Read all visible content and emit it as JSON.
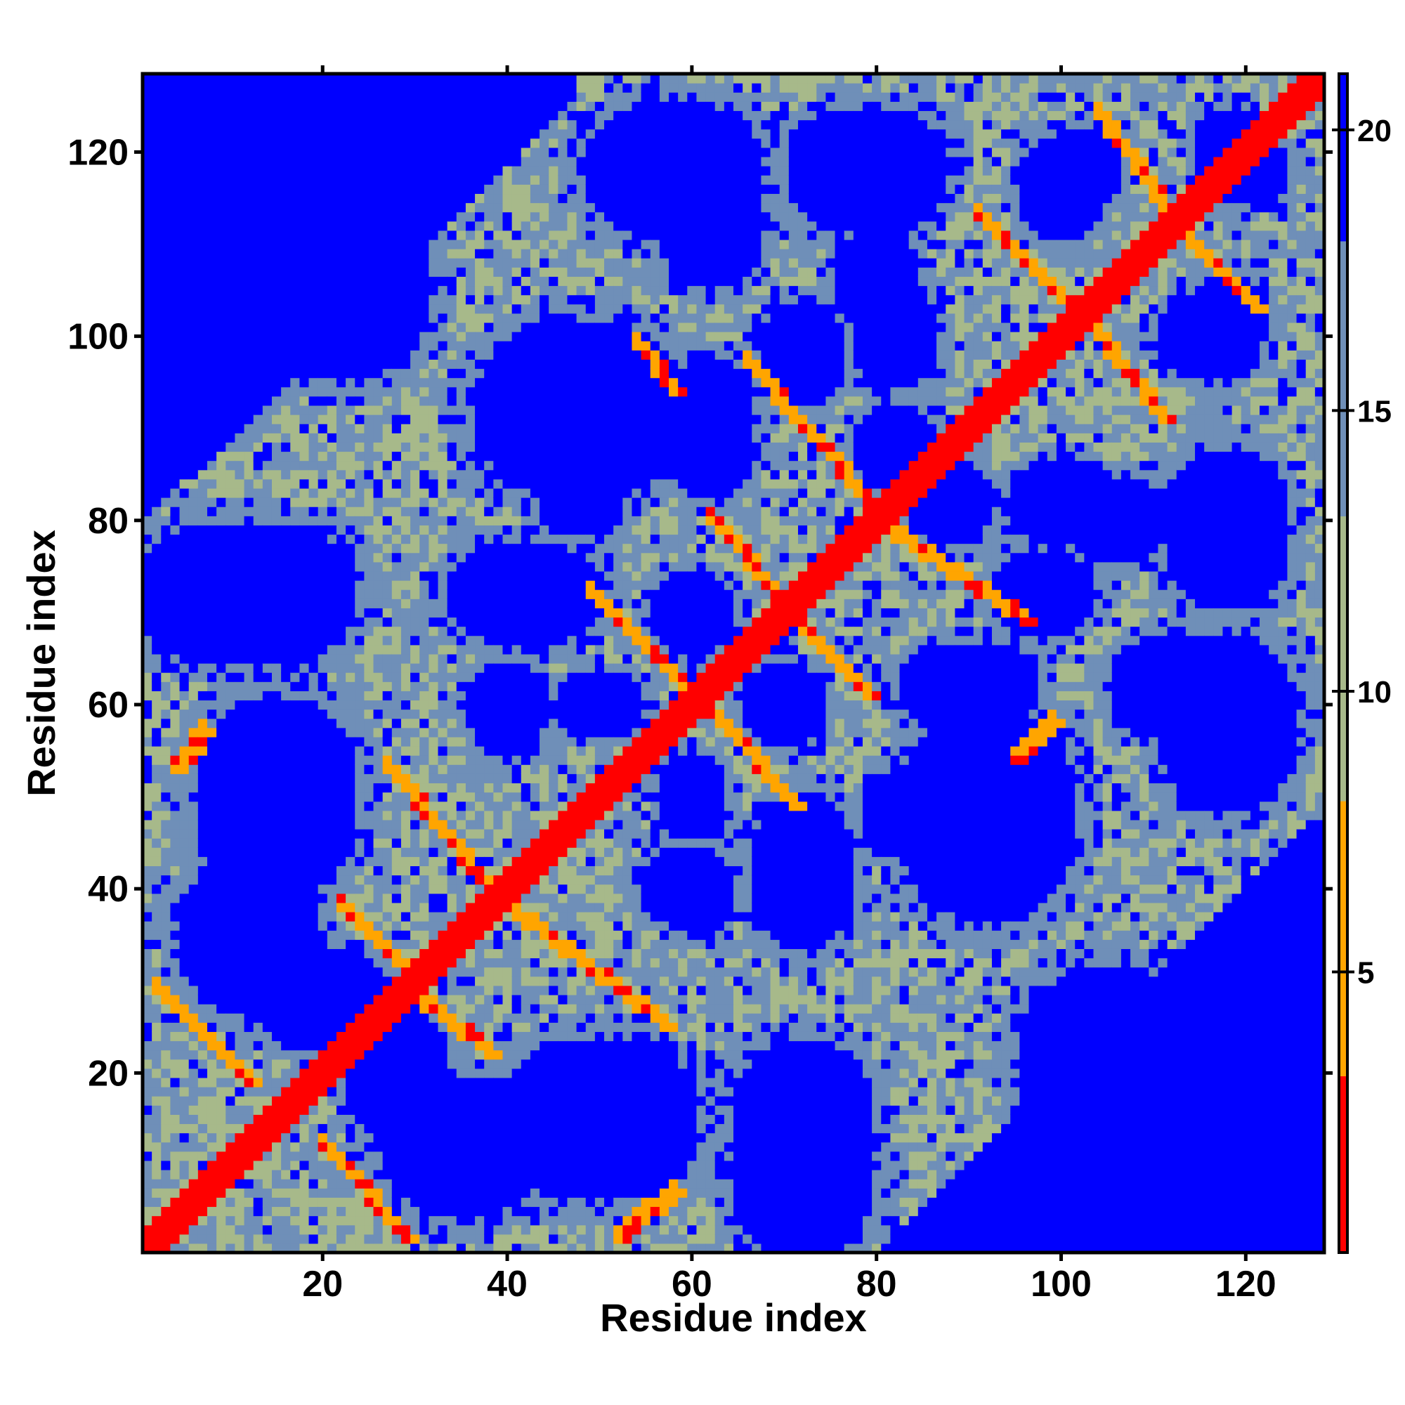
{
  "chart_data": {
    "type": "heatmap",
    "title": "",
    "xlabel": "Residue index",
    "ylabel": "Residue index",
    "n_residues": 128,
    "xlim": [
      1,
      128
    ],
    "ylim": [
      1,
      128
    ],
    "x_ticks": [
      20,
      40,
      60,
      80,
      100,
      120
    ],
    "y_ticks": [
      20,
      40,
      60,
      80,
      100,
      120
    ],
    "colorbar": {
      "ticks": [
        5,
        10,
        15,
        20
      ],
      "range": [
        0,
        21
      ],
      "colors": {
        "contact": "#ff0000",
        "near": "#ffa500",
        "mid": "#a7b98a",
        "far_mid": "#6f8fb8",
        "cutoff": "#0000ff"
      }
    },
    "description_values": {
      "diagonal_distance": 0,
      "cutoff_distance": 21
    },
    "contact_stripes": [
      {
        "x0": 2,
        "y0": 29,
        "x1": 12,
        "y1": 19,
        "v": 6
      },
      {
        "x0": 20,
        "y0": 12,
        "x1": 29,
        "y1": 2,
        "v": 6
      },
      {
        "x0": 22,
        "y0": 38,
        "x1": 30,
        "y1": 30,
        "v": 6
      },
      {
        "x0": 30,
        "y0": 28,
        "x1": 38,
        "y1": 22,
        "v": 6
      },
      {
        "x0": 27,
        "y0": 53,
        "x1": 38,
        "y1": 40,
        "v": 6
      },
      {
        "x0": 40,
        "y0": 38,
        "x1": 57,
        "y1": 25,
        "v": 6
      },
      {
        "x0": 49,
        "y0": 72,
        "x1": 60,
        "y1": 61,
        "v": 6
      },
      {
        "x0": 62,
        "y0": 59,
        "x1": 71,
        "y1": 49,
        "v": 6
      },
      {
        "x0": 62,
        "y0": 80,
        "x1": 69,
        "y1": 72,
        "v": 6
      },
      {
        "x0": 72,
        "y0": 68,
        "x1": 79,
        "y1": 61,
        "v": 6
      },
      {
        "x0": 66,
        "y0": 97,
        "x1": 79,
        "y1": 82,
        "v": 6
      },
      {
        "x0": 81,
        "y0": 79,
        "x1": 96,
        "y1": 69,
        "v": 6
      },
      {
        "x0": 54,
        "y0": 99,
        "x1": 58,
        "y1": 94,
        "v": 6
      },
      {
        "x0": 91,
        "y0": 113,
        "x1": 100,
        "y1": 104,
        "v": 6
      },
      {
        "x0": 103,
        "y0": 101,
        "x1": 111,
        "y1": 91,
        "v": 6
      },
      {
        "x0": 104,
        "y0": 124,
        "x1": 111,
        "y1": 114,
        "v": 6
      },
      {
        "x0": 113,
        "y0": 111,
        "x1": 121,
        "y1": 103,
        "v": 6
      },
      {
        "x0": 4,
        "y0": 53,
        "x1": 7,
        "y1": 57,
        "v": 6
      },
      {
        "x0": 52,
        "y0": 2,
        "x1": 58,
        "y1": 7,
        "v": 6
      },
      {
        "x0": 95,
        "y0": 54,
        "x1": 99,
        "y1": 58,
        "v": 6
      }
    ],
    "cutoff_blobs": [
      {
        "cx": 10,
        "cy": 72,
        "rx": 11,
        "ry": 8
      },
      {
        "cx": 15,
        "cy": 48,
        "rx": 9,
        "ry": 9
      },
      {
        "cx": 20,
        "cy": 28,
        "rx": 8,
        "ry": 6
      },
      {
        "cx": 35,
        "cy": 12,
        "rx": 9,
        "ry": 8
      },
      {
        "cx": 52,
        "cy": 15,
        "rx": 9,
        "ry": 9
      },
      {
        "cx": 72,
        "cy": 15,
        "rx": 8,
        "ry": 9
      },
      {
        "cx": 42,
        "cy": 72,
        "rx": 9,
        "ry": 6
      },
      {
        "cx": 48,
        "cy": 92,
        "rx": 12,
        "ry": 10
      },
      {
        "cx": 22,
        "cy": 105,
        "rx": 10,
        "ry": 10
      },
      {
        "cx": 58,
        "cy": 118,
        "rx": 10,
        "ry": 8
      },
      {
        "cx": 78,
        "cy": 118,
        "rx": 8,
        "ry": 7
      },
      {
        "cx": 62,
        "cy": 88,
        "rx": 5,
        "ry": 6
      },
      {
        "cx": 72,
        "cy": 98,
        "rx": 5,
        "ry": 6
      },
      {
        "cx": 82,
        "cy": 88,
        "rx": 5,
        "ry": 5
      },
      {
        "cx": 80,
        "cy": 106,
        "rx": 5,
        "ry": 6
      },
      {
        "cx": 70,
        "cy": 60,
        "rx": 5,
        "ry": 5
      },
      {
        "cx": 50,
        "cy": 60,
        "rx": 5,
        "ry": 4
      },
      {
        "cx": 40,
        "cy": 58,
        "rx": 4,
        "ry": 4
      },
      {
        "cx": 60,
        "cy": 40,
        "rx": 5,
        "ry": 5
      },
      {
        "cx": 82,
        "cy": 48,
        "rx": 4,
        "ry": 5
      },
      {
        "cx": 92,
        "cy": 62,
        "rx": 6,
        "ry": 5
      },
      {
        "cx": 100,
        "cy": 82,
        "rx": 6,
        "ry": 5
      },
      {
        "cx": 112,
        "cy": 62,
        "rx": 7,
        "ry": 6
      },
      {
        "cx": 118,
        "cy": 80,
        "rx": 7,
        "ry": 8
      },
      {
        "cx": 102,
        "cy": 118,
        "rx": 5,
        "ry": 5
      },
      {
        "cx": 116,
        "cy": 100,
        "rx": 6,
        "ry": 5
      },
      {
        "cx": 120,
        "cy": 118,
        "rx": 5,
        "ry": 4
      }
    ],
    "cutoff_triangle_upper_left": {
      "x_at_y_top": 48,
      "x_at_y_bottom": 1,
      "y_bottom": 80
    },
    "cutoff_triangle_lower_right": {
      "y_at_x_right": 48,
      "y_at_x_left": 1,
      "x_left": 80
    },
    "legend": "right"
  }
}
